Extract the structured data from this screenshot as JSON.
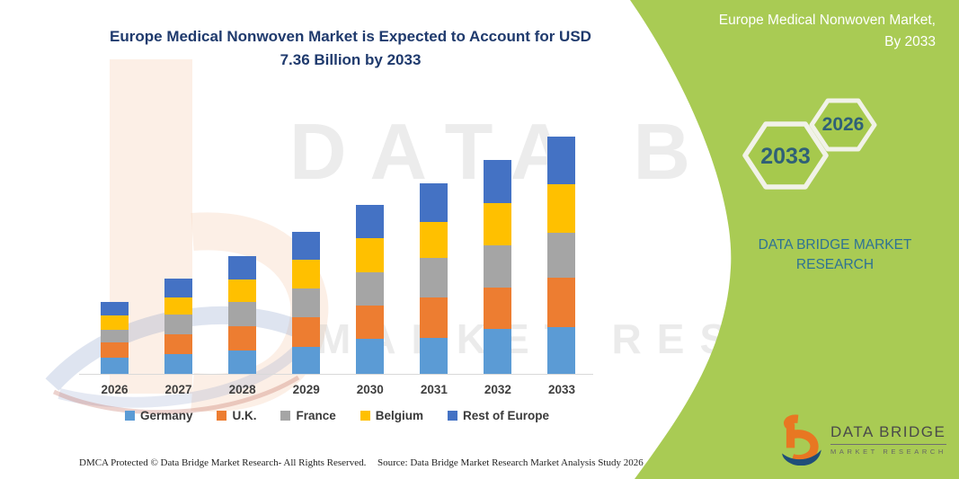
{
  "title": {
    "line1": "Europe Medical Nonwoven Market is Expected to Account for USD",
    "line2": "7.36 Billion by 2033"
  },
  "watermark": {
    "line1": "DATA BRIDGE",
    "line2": "MARKET RESEARCH"
  },
  "panel": {
    "header_line1": "Europe Medical Nonwoven Market,",
    "header_line2": "By 2033",
    "hexagons": [
      {
        "label": "2033"
      },
      {
        "label": "2026"
      }
    ],
    "brand_line1": "DATA BRIDGE MARKET",
    "brand_line2": "RESEARCH",
    "accent_green": "#a6c94d"
  },
  "logo": {
    "name": "DATA BRIDGE",
    "sub": "MARKET RESEARCH"
  },
  "footer": {
    "dmca": "DMCA Protected © Data Bridge Market Research-  All Rights Reserved.",
    "source": "Source: Data Bridge Market Research  Market Analysis Study 2026"
  },
  "chart_data": {
    "type": "bar",
    "stacked": true,
    "title": "Europe Medical Nonwoven Market is Expected to Account for USD 7.36 Billion by 2033",
    "unit": "USD Billion",
    "categories": [
      "2026",
      "2027",
      "2028",
      "2029",
      "2030",
      "2031",
      "2032",
      "2033"
    ],
    "series": [
      {
        "name": "Germany",
        "color": "#5b9bd5",
        "values": [
          0.49,
          0.6,
          0.72,
          0.84,
          1.09,
          1.11,
          1.4,
          1.46
        ]
      },
      {
        "name": "U.K.",
        "color": "#ed7d31",
        "values": [
          0.49,
          0.62,
          0.76,
          0.91,
          1.02,
          1.25,
          1.28,
          1.51
        ]
      },
      {
        "name": "France",
        "color": "#a5a5a5",
        "values": [
          0.39,
          0.61,
          0.74,
          0.9,
          1.05,
          1.25,
          1.32,
          1.41
        ]
      },
      {
        "name": "Belgium",
        "color": "#ffc000",
        "values": [
          0.44,
          0.53,
          0.7,
          0.88,
          1.04,
          1.11,
          1.31,
          1.5
        ]
      },
      {
        "name": "Rest of Europe",
        "color": "#4472c4",
        "values": [
          0.43,
          0.59,
          0.74,
          0.88,
          1.05,
          1.19,
          1.32,
          1.48
        ]
      }
    ],
    "totals": [
      2.24,
      2.95,
      3.66,
      4.41,
      5.25,
      5.91,
      6.63,
      7.36
    ],
    "ylim": [
      0,
      7.36
    ],
    "grid": false,
    "value_labels": false,
    "legend_position": "bottom"
  }
}
